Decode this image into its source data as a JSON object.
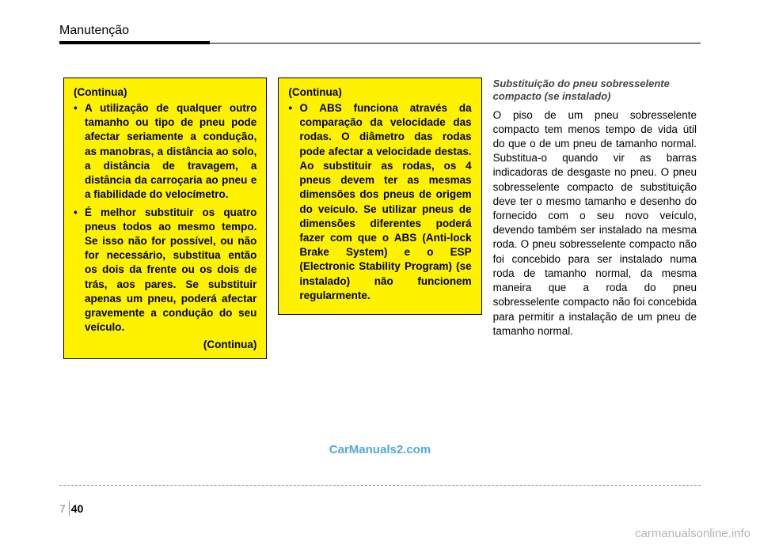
{
  "header": {
    "title": "Manutenção"
  },
  "col1": {
    "continue_label": "(Continua)",
    "bullets": [
      "A utilização de qualquer outro tamanho ou tipo de pneu pode afectar seriamente a condução, as manobras, a distância ao solo, a distância de travagem, a distância da carroçaria ao pneu e a fiabilidade do velocímetro.",
      "É melhor substituir os quatro pneus todos ao mesmo tempo. Se isso não for possível, ou não for necessário, substitua então os dois da frente ou os dois de trás, aos pares. Se substituir apenas um pneu, poderá afectar gravemente a condução do seu veículo."
    ],
    "continue_right": "(Continua)"
  },
  "col2": {
    "continue_label": "(Continua)",
    "bullets": [
      "O ABS funciona através da comparação da velocidade das rodas. O diâmetro das rodas pode afectar a velocidade destas. Ao substituir as rodas, os 4 pneus devem ter as mesmas dimensões dos pneus de origem do veículo. Se utilizar pneus de dimensões diferentes poderá fazer com que o ABS (Anti-lock Brake System) e o ESP (Electronic Stability Program) (se instalado) não funcionem regularmente."
    ]
  },
  "col3": {
    "subheading": "Substituição do pneu sobresselente compacto (se instalado)",
    "body": "O piso de um pneu sobresselente compacto tem menos tempo de vida útil do que o de um pneu de tamanho normal. Substitua-o quando vir as barras indicadoras de desgaste no pneu. O pneu sobresselente compacto de substituição deve ter o mesmo tamanho e desenho do fornecido com o seu novo veículo, devendo também ser instalado na mesma roda. O pneu sobresselente compacto não foi concebido para ser instalado numa roda de tamanho normal, da mesma maneira que a roda do pneu sobresselente compacto não foi concebida para permitir a instalação de um pneu de tamanho normal."
  },
  "watermark_center": "CarManuals2.com",
  "footer": {
    "section": "7",
    "page": "40"
  },
  "watermark_bottom": "carmanualsonline.info"
}
